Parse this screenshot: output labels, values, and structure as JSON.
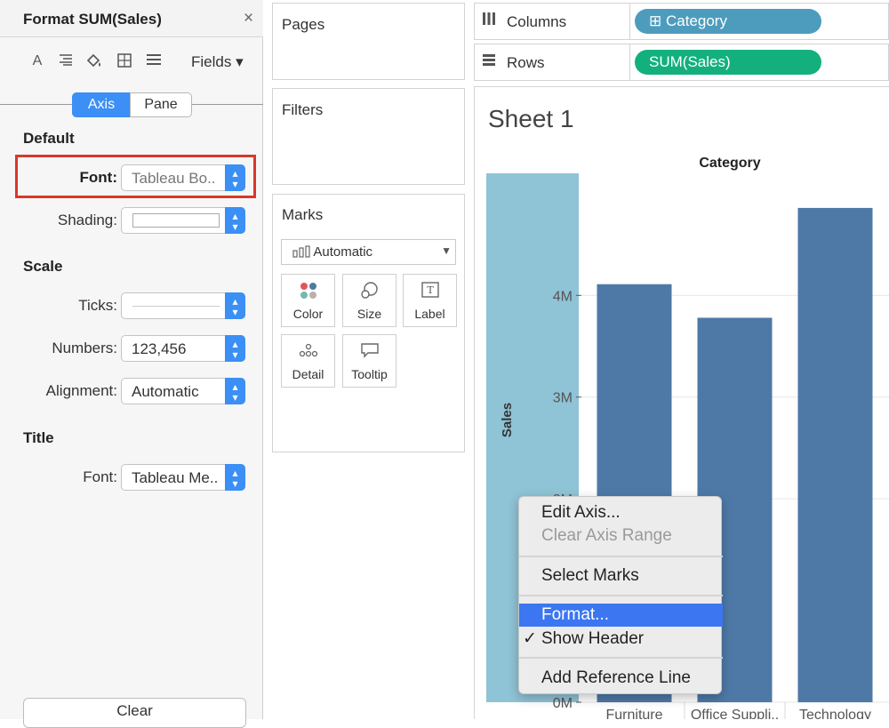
{
  "format_pane": {
    "title": "Format SUM(Sales)",
    "close_glyph": "×",
    "toolbar": {
      "icons": [
        "font-icon",
        "align-icon",
        "shading-icon",
        "borders-icon",
        "lines-icon"
      ],
      "fields_label": "Fields",
      "fields_arrow": "▾"
    },
    "tabs": {
      "axis": "Axis",
      "pane": "Pane"
    },
    "default": {
      "heading": "Default",
      "font_label": "Font:",
      "font_value": "Tableau Bo..",
      "shading_label": "Shading:"
    },
    "scale": {
      "heading": "Scale",
      "ticks_label": "Ticks:",
      "numbers_label": "Numbers:",
      "numbers_value": "123,456",
      "alignment_label": "Alignment:",
      "alignment_value": "Automatic"
    },
    "title_section": {
      "heading": "Title",
      "font_label": "Font:",
      "font_value": "Tableau Me.."
    },
    "clear_label": "Clear"
  },
  "cards": {
    "pages": "Pages",
    "filters": "Filters",
    "marks": {
      "title": "Marks",
      "type_value": "Automatic",
      "buttons": {
        "color": "Color",
        "size": "Size",
        "label": "Label",
        "detail": "Detail",
        "tooltip": "Tooltip"
      }
    }
  },
  "shelves": {
    "columns_label": "Columns",
    "columns_pill": "⊞ Category",
    "rows_label": "Rows",
    "rows_pill": "SUM(Sales)"
  },
  "sheet_title": "Sheet 1",
  "chart_data": {
    "type": "bar",
    "title": "",
    "header": "Category",
    "categories": [
      "Furniture",
      "Office Supplies",
      "Technology"
    ],
    "category_tick_labels": [
      "Furniture",
      "Office Suppli..",
      "Technology"
    ],
    "values": [
      4.11,
      3.78,
      4.86
    ],
    "ylabel": "Sales",
    "y_unit": "M",
    "ylim": [
      0,
      5.2
    ],
    "y_ticks": [
      0,
      2,
      3,
      4
    ],
    "y_tick_labels": [
      "0M",
      "2M",
      "3M",
      "4M"
    ],
    "axis_highlighted": true,
    "bar_color": "#4e79a7",
    "axis_highlight_color": "#8fc3d6",
    "grid": true
  },
  "context_menu": {
    "items": [
      {
        "label": "Edit Axis...",
        "disabled": false,
        "selected": false,
        "checked": false
      },
      {
        "label": "Clear Axis Range",
        "disabled": true,
        "selected": false,
        "checked": false
      },
      {
        "label": "Select Marks",
        "disabled": false,
        "selected": false,
        "checked": false
      },
      {
        "label": "Format...",
        "disabled": false,
        "selected": true,
        "checked": false
      },
      {
        "label": "Show Header",
        "disabled": false,
        "selected": false,
        "checked": true
      },
      {
        "label": "Add Reference Line",
        "disabled": false,
        "selected": false,
        "checked": false
      }
    ],
    "check_glyph": "✓"
  },
  "colors": {
    "accent_blue": "#3b8ff5",
    "highlight_red": "#d9372b",
    "category_pill": "#4e9cbd",
    "measure_pill": "#13b07d"
  }
}
